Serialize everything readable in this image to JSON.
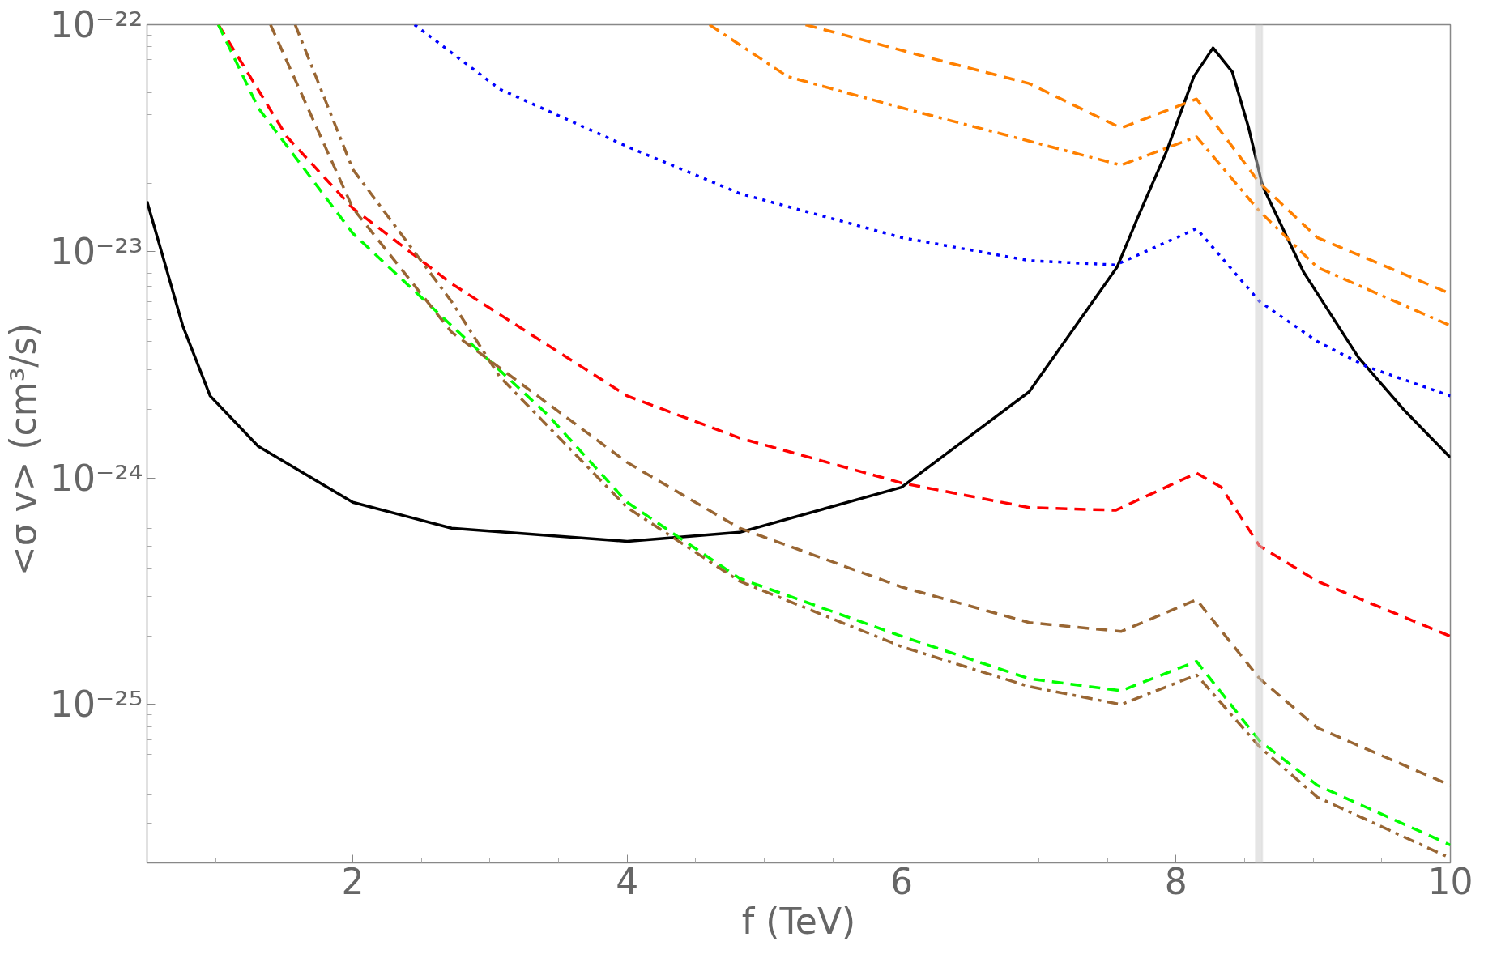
{
  "chart_data": {
    "type": "line",
    "xlabel": "f (TeV)",
    "ylabel": "<σ v>  (cm³/s)",
    "log": "y",
    "grid": false,
    "marker": "none",
    "xlim": [
      0.5,
      10
    ],
    "ylim": [
      2e-26,
      1e-22
    ],
    "xticks": [
      2,
      4,
      6,
      8,
      10
    ],
    "yticks": [
      {
        "value": 1e-25,
        "label": "10⁻²⁵"
      },
      {
        "value": 1e-24,
        "label": "10⁻²⁴"
      },
      {
        "value": 1e-23,
        "label": "10⁻²³"
      },
      {
        "value": 1e-22,
        "label": "10⁻²²"
      }
    ],
    "bands": [
      {
        "axis": "x",
        "from": 8.58,
        "to": 8.63,
        "color": "#cccccc"
      }
    ],
    "series": [
      {
        "color": "#000000",
        "line_style": "solid",
        "x": [
          0.5,
          0.76,
          0.96,
          1.31,
          2,
          2.72,
          4,
          4.82,
          6,
          6.93,
          7.57,
          7.73,
          7.93,
          8.13,
          8.27,
          8.41,
          8.53,
          8.63,
          8.93,
          9.33,
          9.66,
          10
        ],
        "values": [
          1.66e-23,
          4.7e-24,
          2.3e-24,
          1.38e-24,
          7.8e-25,
          6e-25,
          5.25e-25,
          5.75e-25,
          9.1e-25,
          2.4e-24,
          8.5e-24,
          1.45e-23,
          2.75e-23,
          5.9e-23,
          7.9e-23,
          6.2e-23,
          3.5e-23,
          1.95e-23,
          8.1e-24,
          3.4e-24,
          2e-24,
          1.23e-24
        ]
      },
      {
        "color": "#0000ff",
        "line_style": "dotted",
        "x": [
          2.45,
          3.07,
          4,
          4.82,
          6,
          6.93,
          7.56,
          8.15,
          8.61,
          9.03,
          9.39,
          10
        ],
        "values": [
          1e-22,
          5.2e-23,
          2.9e-23,
          1.8e-23,
          1.15e-23,
          9.1e-24,
          8.7e-24,
          1.26e-23,
          6e-24,
          4e-24,
          3.1e-24,
          2.3e-24
        ]
      },
      {
        "color": "#ff8000",
        "line_style": "dashed",
        "x": [
          5.3,
          6.22,
          6.93,
          7.6,
          8.15,
          8.61,
          9.03,
          10
        ],
        "values": [
          1e-22,
          7.1e-23,
          5.5e-23,
          3.5e-23,
          4.7e-23,
          2e-23,
          1.15e-23,
          6.5e-24
        ]
      },
      {
        "color": "#ff8000",
        "line_style": "dashdot",
        "x": [
          4.6,
          5.17,
          6,
          7.6,
          8.15,
          8.61,
          9.03,
          10
        ],
        "values": [
          1e-22,
          5.9e-23,
          4.3e-23,
          2.4e-23,
          3.2e-23,
          1.5e-23,
          8.5e-24,
          4.7e-24
        ]
      },
      {
        "color": "#ff0000",
        "line_style": "dashed",
        "x": [
          1.02,
          1.52,
          2,
          2.72,
          4,
          4.82,
          6,
          6.93,
          7.56,
          8.15,
          8.33,
          8.61,
          9.03,
          10
        ],
        "values": [
          1e-22,
          3.2e-23,
          1.55e-23,
          7.2e-24,
          2.3e-24,
          1.5e-24,
          9.5e-25,
          7.4e-25,
          7.2e-25,
          1.05e-24,
          9.1e-25,
          5e-25,
          3.5e-25,
          2e-25
        ]
      },
      {
        "color": "#00ff00",
        "line_style": "dashed",
        "x": [
          1.02,
          1.31,
          2,
          2.72,
          3.42,
          4,
          4.82,
          6,
          6.93,
          7.6,
          8.15,
          8.61,
          9.03,
          10
        ],
        "values": [
          1e-22,
          4.3e-23,
          1.2e-23,
          4.7e-24,
          1.9e-24,
          7.8e-25,
          3.6e-25,
          2e-25,
          1.3e-25,
          1.15e-25,
          1.55e-25,
          6.9e-26,
          4.4e-26,
          2.4e-26
        ]
      },
      {
        "color": "#996633",
        "line_style": "dashed",
        "x": [
          1.4,
          2,
          2.72,
          4,
          4.82,
          6,
          6.93,
          7.6,
          8.15,
          8.61,
          9.03,
          10
        ],
        "values": [
          1e-22,
          1.55e-23,
          4.4e-24,
          1.17e-24,
          6e-25,
          3.3e-25,
          2.3e-25,
          2.1e-25,
          2.9e-25,
          1.3e-25,
          7.9e-26,
          4.4e-26
        ]
      },
      {
        "color": "#996633",
        "line_style": "dashdot",
        "x": [
          1.58,
          2,
          2.72,
          3.07,
          4,
          4.82,
          6,
          6.93,
          7.6,
          8.15,
          8.61,
          9.03,
          10
        ],
        "values": [
          1e-22,
          2.3e-23,
          6e-24,
          2.8e-24,
          7.4e-25,
          3.5e-25,
          1.8e-25,
          1.2e-25,
          1e-25,
          1.35e-25,
          6.5e-26,
          3.9e-26,
          2.1e-26
        ]
      }
    ]
  }
}
